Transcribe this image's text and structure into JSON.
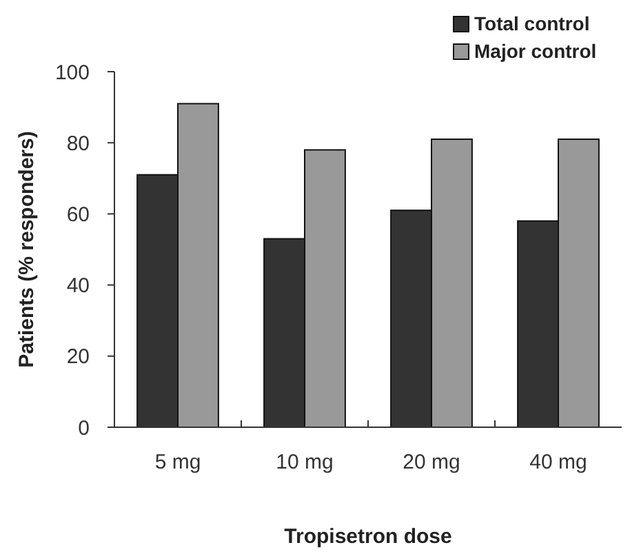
{
  "chart_data": {
    "type": "bar",
    "xlabel": "Tropisetron dose",
    "ylabel": "Patients (% responders)",
    "categories": [
      "5 mg",
      "10 mg",
      "20 mg",
      "40 mg"
    ],
    "series": [
      {
        "name": "Total control",
        "color": "#333333",
        "values": [
          71,
          53,
          61,
          58
        ]
      },
      {
        "name": "Major control",
        "color": "#999999",
        "values": [
          91,
          78,
          81,
          81
        ]
      }
    ],
    "ylim": [
      0,
      100
    ],
    "yticks": [
      0,
      20,
      40,
      60,
      80,
      100
    ],
    "legend": "top right"
  }
}
